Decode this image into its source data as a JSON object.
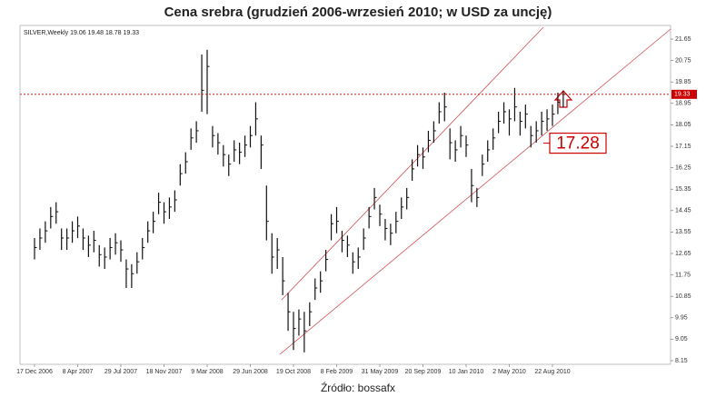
{
  "chart_data": {
    "type": "ohlc",
    "title": "Cena srebra (grudzień 2006-wrzesień 2010; w USD za uncję)",
    "header": "SILVER,Weekly 19.06 19.48 18.78 19.33",
    "source": "Źródło: bossafx",
    "color": "#111111",
    "categories": [
      "17 Dec 2006",
      null,
      null,
      null,
      null,
      null,
      null,
      null,
      "8 Apr 2007",
      null,
      null,
      null,
      null,
      null,
      null,
      null,
      "29 Jul 2007",
      null,
      null,
      null,
      null,
      null,
      null,
      null,
      "18 Nov 2007",
      null,
      null,
      null,
      null,
      null,
      null,
      null,
      "9 Mar 2008",
      null,
      null,
      null,
      null,
      null,
      null,
      null,
      "29 Jun 2008",
      null,
      null,
      null,
      null,
      null,
      null,
      null,
      "19 Oct 2008",
      null,
      null,
      null,
      null,
      null,
      null,
      null,
      "8 Feb 2009",
      null,
      null,
      null,
      null,
      null,
      null,
      null,
      "31 May 2009",
      null,
      null,
      null,
      null,
      null,
      null,
      null,
      "20 Sep 2009",
      null,
      null,
      null,
      null,
      null,
      null,
      null,
      "10 Jan 2010",
      null,
      null,
      null,
      null,
      null,
      null,
      null,
      "2 May 2010",
      null,
      null,
      null,
      null,
      null,
      null,
      null,
      "22 Aug 2010",
      null,
      null
    ],
    "high": [
      13.3,
      13.7,
      14.0,
      14.6,
      14.8,
      13.7,
      13.7,
      14.0,
      14.2,
      13.7,
      13.4,
      13.6,
      13.0,
      12.9,
      13.3,
      13.5,
      13.2,
      12.4,
      12.2,
      12.7,
      13.3,
      14.0,
      14.4,
      15.2,
      14.8,
      15.0,
      15.3,
      16.4,
      16.9,
      17.9,
      18.2,
      21.0,
      21.2,
      18.0,
      17.7,
      17.2,
      16.8,
      17.4,
      17.3,
      17.6,
      18.0,
      19.0,
      17.6,
      15.5,
      13.5,
      13.3,
      12.5,
      11.0,
      10.2,
      10.3,
      10.2,
      10.6,
      11.6,
      11.9,
      12.8,
      14.3,
      14.6,
      13.6,
      13.4,
      12.7,
      12.9,
      13.7,
      14.6,
      15.4,
      14.7,
      14.1,
      13.9,
      14.4,
      15.0,
      15.4,
      16.6,
      17.2,
      17.1,
      17.8,
      18.2,
      19.0,
      19.4,
      17.9,
      17.4,
      18.0,
      17.6,
      16.2,
      15.4,
      16.8,
      17.4,
      17.9,
      18.6,
      19.0,
      18.7,
      19.6,
      18.6,
      18.9,
      18.0,
      18.2,
      18.6,
      18.7,
      18.9,
      19.4,
      19.48
    ],
    "low": [
      12.4,
      12.8,
      13.1,
      13.7,
      13.9,
      12.8,
      12.8,
      13.1,
      13.3,
      12.8,
      12.5,
      12.7,
      12.1,
      12.0,
      12.4,
      12.6,
      12.3,
      11.2,
      11.2,
      11.8,
      12.4,
      13.1,
      13.5,
      14.3,
      13.9,
      14.1,
      14.4,
      15.5,
      16.0,
      17.0,
      17.3,
      18.6,
      18.5,
      17.1,
      16.8,
      16.3,
      15.9,
      16.5,
      16.4,
      16.7,
      17.1,
      17.6,
      16.2,
      13.2,
      11.8,
      12.0,
      10.9,
      9.4,
      8.6,
      9.2,
      8.5,
      9.6,
      10.7,
      11.0,
      11.9,
      13.2,
      13.5,
      12.7,
      12.5,
      11.8,
      12.0,
      12.8,
      13.7,
      14.5,
      13.8,
      13.2,
      13.0,
      13.5,
      14.1,
      14.5,
      15.7,
      16.3,
      16.2,
      16.9,
      17.3,
      18.1,
      18.2,
      16.6,
      16.5,
      17.1,
      16.7,
      14.8,
      14.6,
      15.9,
      16.5,
      17.0,
      17.7,
      18.1,
      17.6,
      18.2,
      17.6,
      17.9,
      17.1,
      17.3,
      17.6,
      17.8,
      18.0,
      18.5,
      18.78
    ],
    "close": [
      12.9,
      13.3,
      13.6,
      14.2,
      14.4,
      13.3,
      13.3,
      13.6,
      13.8,
      13.3,
      13.0,
      13.2,
      12.6,
      12.5,
      12.9,
      13.1,
      12.8,
      12.0,
      11.8,
      12.3,
      12.9,
      13.6,
      14.0,
      14.8,
      14.4,
      14.6,
      14.9,
      16.0,
      16.5,
      17.5,
      17.8,
      19.5,
      20.5,
      17.6,
      17.3,
      16.8,
      16.4,
      17.0,
      16.9,
      17.2,
      17.6,
      18.3,
      17.2,
      14.0,
      12.5,
      12.8,
      11.5,
      10.2,
      9.5,
      9.9,
      9.4,
      10.2,
      11.2,
      11.5,
      12.4,
      13.9,
      14.0,
      13.2,
      13.0,
      12.3,
      12.5,
      13.3,
      14.2,
      15.0,
      14.3,
      13.7,
      13.5,
      14.0,
      14.6,
      15.0,
      16.2,
      16.8,
      16.7,
      17.4,
      17.8,
      18.6,
      18.8,
      17.3,
      17.0,
      17.6,
      17.2,
      15.5,
      15.0,
      16.4,
      17.0,
      17.5,
      18.2,
      18.6,
      18.3,
      18.8,
      18.2,
      18.5,
      17.6,
      17.8,
      18.2,
      18.3,
      18.5,
      19.0,
      19.33
    ],
    "ylim": [
      8.15,
      21.65
    ],
    "yticks": [
      8.15,
      9.05,
      9.95,
      10.85,
      11.75,
      12.65,
      13.55,
      14.45,
      15.35,
      16.25,
      17.15,
      18.05,
      18.95,
      19.85,
      20.75,
      21.65
    ],
    "current_price": 19.33,
    "current_price_color": "#cc0000",
    "annotation": 17.28
  }
}
